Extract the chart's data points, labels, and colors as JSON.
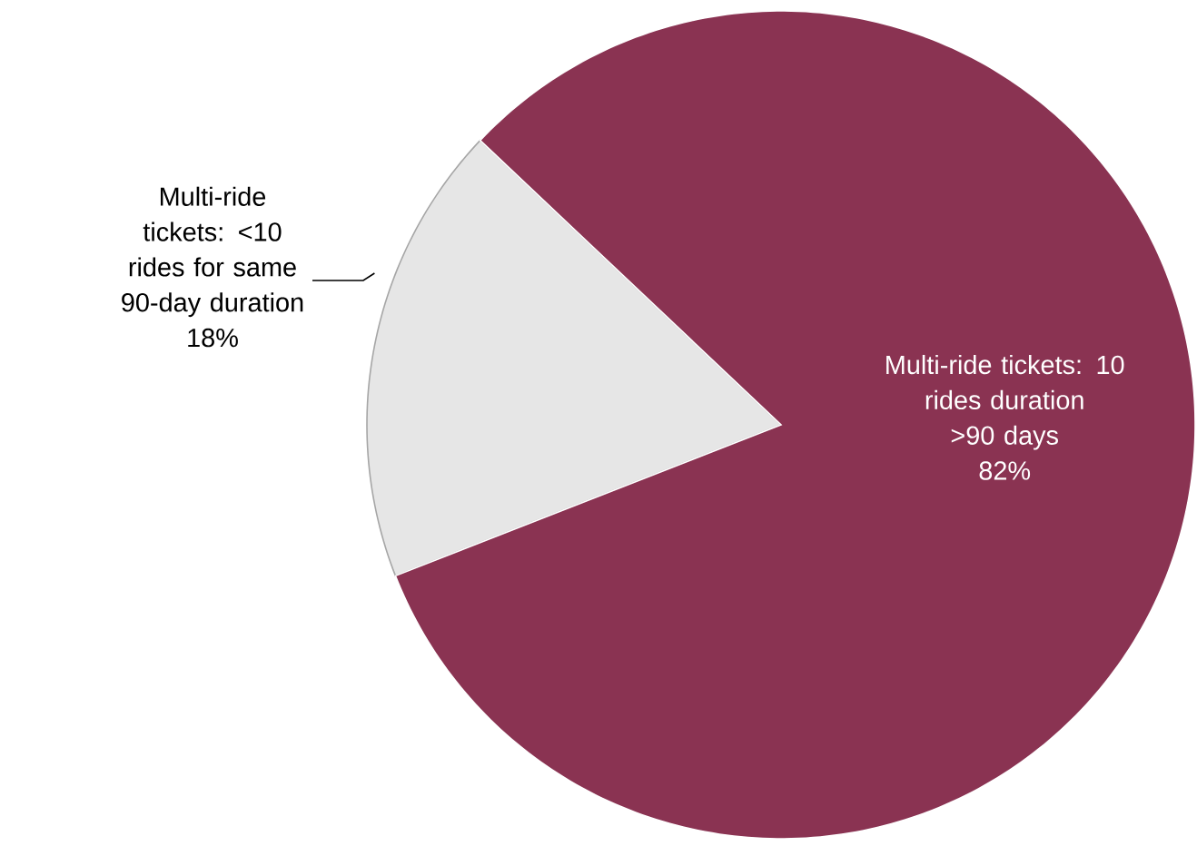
{
  "chart_data": {
    "type": "pie",
    "categories": [
      "Multi-ride tickets: <10 rides for same 90-day duration",
      "Multi-ride tickets: 10 rides duration >90 days"
    ],
    "values": [
      18,
      82
    ],
    "colors": [
      "#e6e6e6",
      "#8a3352"
    ],
    "value_labels": [
      "18%",
      "82%"
    ]
  }
}
